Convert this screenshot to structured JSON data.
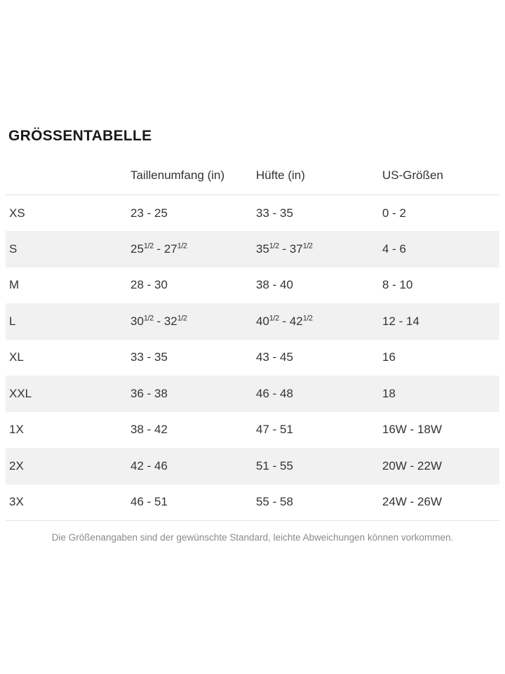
{
  "title": "GRÖSSENTABELLE",
  "table": {
    "headers": [
      "",
      "Taillenumfang (in)",
      "Hüfte (in)",
      "US-Größen"
    ],
    "rows": [
      [
        "XS",
        "23 - 25",
        "33 - 35",
        "0 - 2"
      ],
      [
        "S",
        "25^(1/2) - 27^(1/2)",
        "35^(1/2) - 37^(1/2)",
        "4 - 6"
      ],
      [
        "M",
        "28 - 30",
        "38 - 40",
        "8 - 10"
      ],
      [
        "L",
        "30^(1/2) - 32^(1/2)",
        "40^(1/2) - 42^(1/2)",
        "12 - 14"
      ],
      [
        "XL",
        "33 - 35",
        "43 - 45",
        "16"
      ],
      [
        "XXL",
        "36 - 38",
        "46 - 48",
        "18"
      ],
      [
        "1X",
        "38 - 42",
        "47 - 51",
        "16W - 18W"
      ],
      [
        "2X",
        "42 - 46",
        "51 - 55",
        "20W - 22W"
      ],
      [
        "3X",
        "46 - 51",
        "55 - 58",
        "24W - 26W"
      ]
    ]
  },
  "footnote": "Die Größenangaben sind der gewünschte Standard, leichte Abweichungen können vorkommen.",
  "colors": {
    "alt_row_background": "#f1f1f1",
    "divider": "#e2e2e2",
    "text": "#333333",
    "title_text": "#1a1a1a",
    "footnote_text": "#8a8a8a"
  }
}
